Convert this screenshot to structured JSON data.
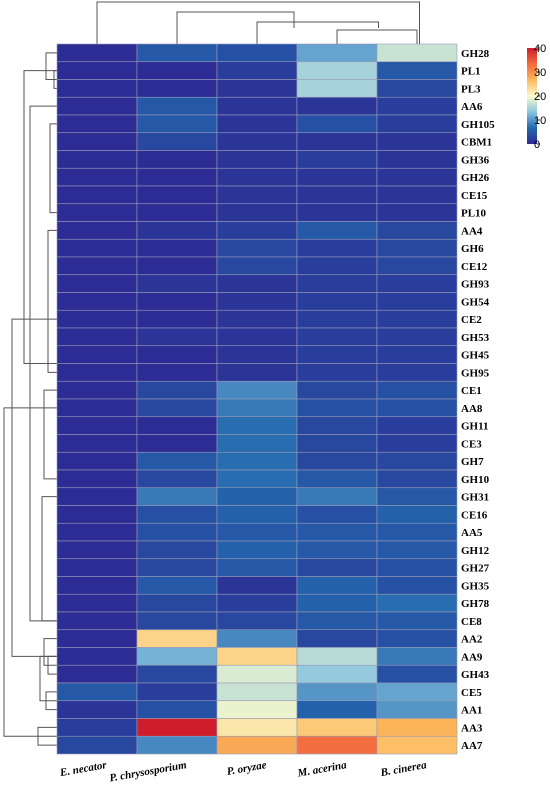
{
  "chart_data": {
    "type": "heatmap",
    "rows": [
      "GH28",
      "PL1",
      "PL3",
      "AA6",
      "GH105",
      "CBM1",
      "GH36",
      "GH26",
      "CE15",
      "PL10",
      "AA4",
      "GH6",
      "CE12",
      "GH93",
      "GH54",
      "CE2",
      "GH53",
      "GH45",
      "GH95",
      "CE1",
      "AA8",
      "GH11",
      "CE3",
      "GH7",
      "GH10",
      "GH31",
      "CE16",
      "AA5",
      "GH12",
      "GH27",
      "GH35",
      "GH78",
      "CE8",
      "AA2",
      "AA9",
      "GH43",
      "CE5",
      "AA1",
      "AA3",
      "AA7"
    ],
    "columns": [
      "E. necator",
      "P. chrysosporium",
      "P. oryzae",
      "M. acerina",
      "B. cinerea"
    ],
    "values": [
      [
        0,
        5,
        4,
        11,
        17
      ],
      [
        0,
        0,
        2,
        15,
        5
      ],
      [
        0,
        0,
        1,
        15,
        3
      ],
      [
        0,
        5,
        1,
        1,
        2
      ],
      [
        0,
        5,
        1,
        4,
        2
      ],
      [
        0,
        3,
        1,
        1,
        1
      ],
      [
        0,
        0,
        1,
        2,
        1
      ],
      [
        0,
        0,
        1,
        1,
        1
      ],
      [
        0,
        0,
        1,
        1,
        1
      ],
      [
        0,
        0,
        1,
        1,
        1
      ],
      [
        0,
        1,
        2,
        5,
        3
      ],
      [
        0,
        0,
        3,
        2,
        3
      ],
      [
        0,
        0,
        3,
        2,
        3
      ],
      [
        0,
        1,
        1,
        2,
        2
      ],
      [
        0,
        0,
        1,
        2,
        2
      ],
      [
        0,
        0,
        1,
        2,
        2
      ],
      [
        0,
        1,
        1,
        2,
        2
      ],
      [
        0,
        0,
        1,
        2,
        2
      ],
      [
        0,
        0,
        1,
        2,
        2
      ],
      [
        0,
        3,
        9,
        3,
        4
      ],
      [
        0,
        3,
        8,
        4,
        4
      ],
      [
        0,
        0,
        7,
        3,
        2
      ],
      [
        0,
        0,
        7,
        3,
        2
      ],
      [
        0,
        5,
        7,
        3,
        3
      ],
      [
        0,
        3,
        7,
        5,
        3
      ],
      [
        0,
        8,
        6,
        8,
        5
      ],
      [
        0,
        4,
        6,
        4,
        6
      ],
      [
        0,
        4,
        5,
        5,
        5
      ],
      [
        0,
        3,
        6,
        5,
        5
      ],
      [
        0,
        3,
        5,
        3,
        4
      ],
      [
        0,
        5,
        1,
        6,
        4
      ],
      [
        0,
        3,
        2,
        6,
        7
      ],
      [
        0,
        3,
        3,
        5,
        5
      ],
      [
        0,
        24,
        9,
        3,
        4
      ],
      [
        0,
        12,
        24,
        16,
        8
      ],
      [
        0,
        3,
        18,
        14,
        4
      ],
      [
        5,
        2,
        17,
        10,
        11
      ],
      [
        1,
        4,
        19,
        6,
        10
      ],
      [
        2,
        40,
        22,
        25,
        27
      ],
      [
        3,
        9,
        28,
        33,
        26
      ]
    ],
    "legend": {
      "min": 0,
      "max": 40,
      "ticks": [
        0,
        10,
        20,
        30,
        40
      ],
      "placement": "top-right"
    },
    "colorscale": [
      "#2c2c94",
      "#2268ad",
      "#89c4e0",
      "#fbfbca",
      "#fcb85c",
      "#f26b3d",
      "#cf1d2c"
    ],
    "row_dendrogram": true,
    "column_dendrogram": true
  }
}
